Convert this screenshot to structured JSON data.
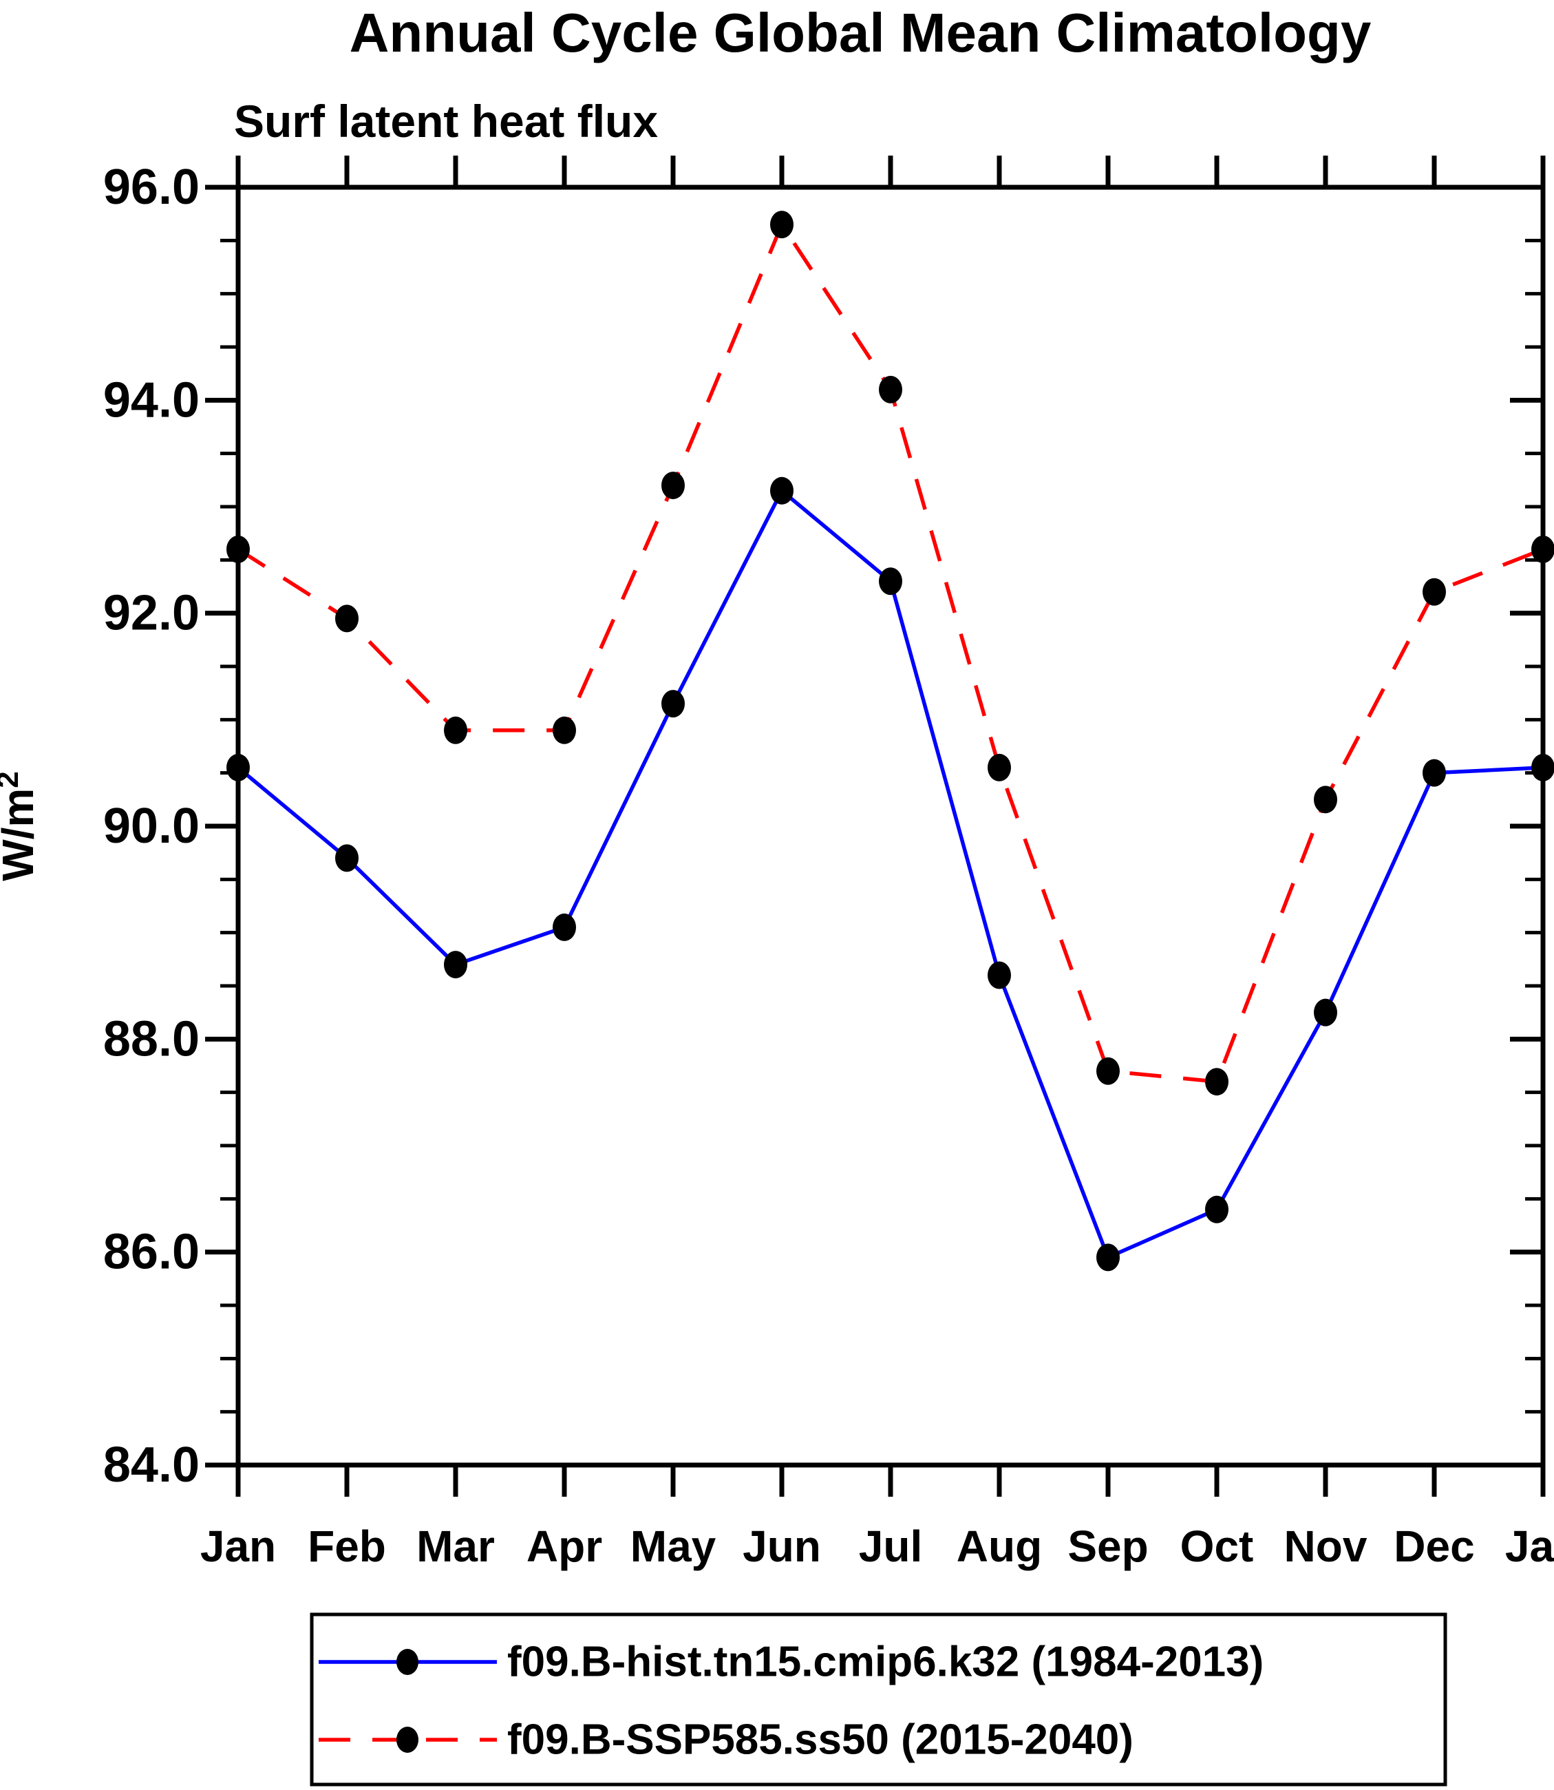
{
  "chart_data": {
    "type": "line",
    "title": "Annual Cycle Global Mean Climatology",
    "subtitle": "Surf latent heat flux",
    "ylabel_base": "W/m",
    "ylabel_exponent": "2",
    "ylabel": "W/m2",
    "xlabel": "",
    "categories": [
      "Jan",
      "Feb",
      "Mar",
      "Apr",
      "May",
      "Jun",
      "Jul",
      "Aug",
      "Sep",
      "Oct",
      "Nov",
      "Dec",
      "Jan"
    ],
    "ylim": [
      84.0,
      96.0
    ],
    "ytick_major_step": 2.0,
    "ytick_minor_step": 0.5,
    "ytick_labels": [
      "84.0",
      "86.0",
      "88.0",
      "90.0",
      "92.0",
      "94.0",
      "96.0"
    ],
    "grid": false,
    "legend_position": "bottom",
    "series": [
      {
        "id": "hist",
        "name": "f09.B-hist.tn15.cmip6.k32 (1984-2013)",
        "color": "#0000ff",
        "line_style": "solid",
        "marker": "filled-circle",
        "marker_color": "#000000",
        "values": [
          90.55,
          89.7,
          88.7,
          89.05,
          91.15,
          93.15,
          92.3,
          88.6,
          85.95,
          86.4,
          88.25,
          90.5,
          90.55
        ]
      },
      {
        "id": "ssp585",
        "name": "f09.B-SSP585.ss50 (2015-2040)",
        "color": "#ff0000",
        "line_style": "dashed",
        "marker": "filled-circle",
        "marker_color": "#000000",
        "values": [
          92.6,
          91.95,
          90.9,
          90.9,
          93.2,
          95.65,
          94.1,
          90.55,
          87.7,
          87.6,
          90.25,
          92.2,
          92.6
        ]
      }
    ]
  },
  "colors": {
    "background": "#ffffff",
    "axis": "#000000",
    "text": "#000000",
    "hist_line": "#0000ff",
    "ssp585_line": "#ff0000",
    "marker": "#000000"
  }
}
